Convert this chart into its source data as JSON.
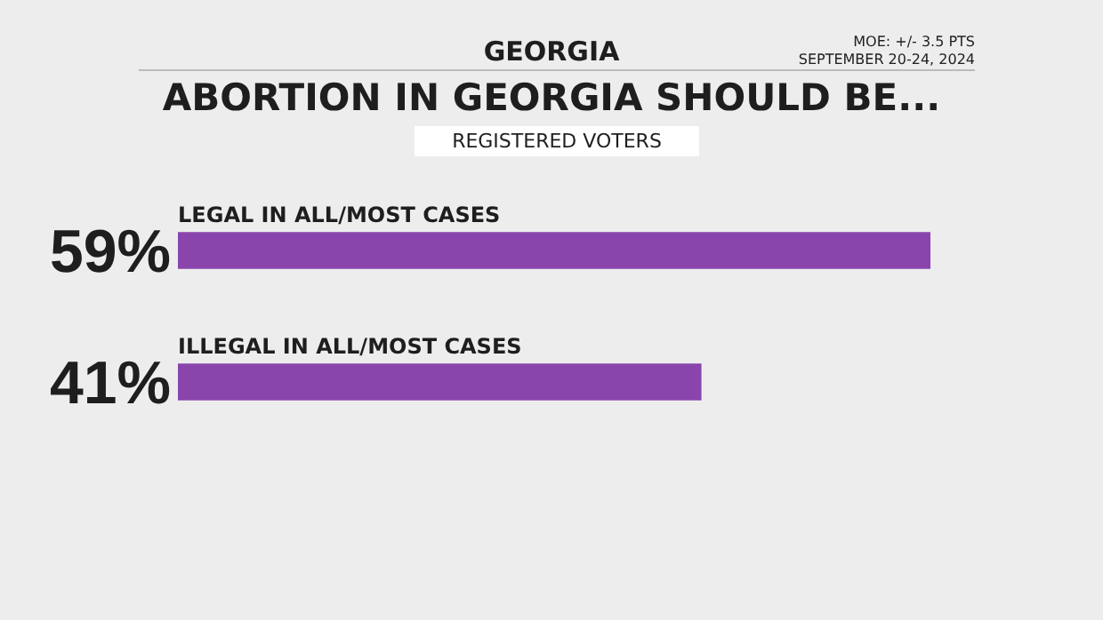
{
  "chart_data": {
    "type": "bar",
    "orientation": "horizontal",
    "title": "ABORTION IN GEORGIA SHOULD BE...",
    "subtitle": "REGISTERED VOTERS",
    "annotations": [
      "GEORGIA",
      "MOE: +/- 3.5 PTS",
      "SEPTEMBER 20-24, 2024"
    ],
    "categories": [
      "LEGAL IN ALL/MOST CASES",
      "ILLEGAL IN ALL/MOST CASES"
    ],
    "values": [
      59,
      41
    ],
    "value_labels": [
      "59%",
      "41%"
    ],
    "color": "#8a45ad",
    "legend": false
  }
}
